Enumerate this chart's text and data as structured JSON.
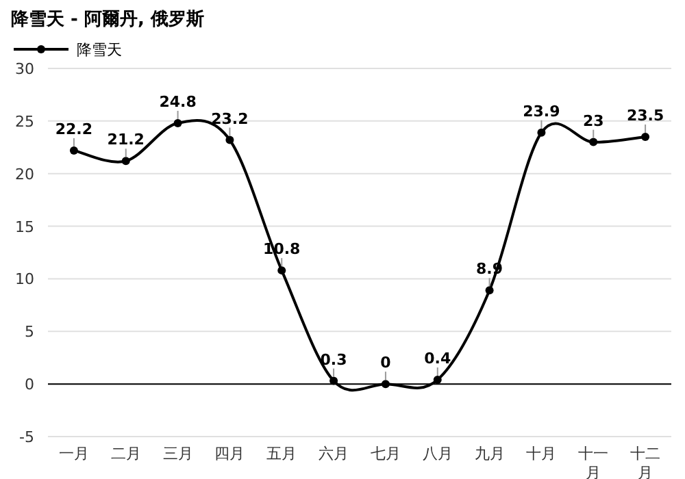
{
  "chart_data": {
    "type": "line",
    "title": "降雪天 - 阿爾丹, 俄罗斯",
    "categories": [
      "一月",
      "二月",
      "三月",
      "四月",
      "五月",
      "六月",
      "七月",
      "八月",
      "九月",
      "十月",
      "十一月",
      "十二月"
    ],
    "series": [
      {
        "name": "降雪天",
        "color": "#000000",
        "values": [
          22.2,
          21.2,
          24.8,
          23.2,
          10.8,
          0.3,
          0,
          0.4,
          8.9,
          23.9,
          23,
          23.5
        ]
      }
    ],
    "ylim": [
      -5,
      30
    ],
    "yticks": [
      -5,
      0,
      5,
      10,
      15,
      20,
      25,
      30
    ],
    "grid": "y",
    "legend": "top left",
    "marker": "circle",
    "line_style": "solid",
    "data_labels": true,
    "ref_lines": [
      {
        "axis": "y",
        "value": 0,
        "color": "#000000"
      }
    ]
  }
}
